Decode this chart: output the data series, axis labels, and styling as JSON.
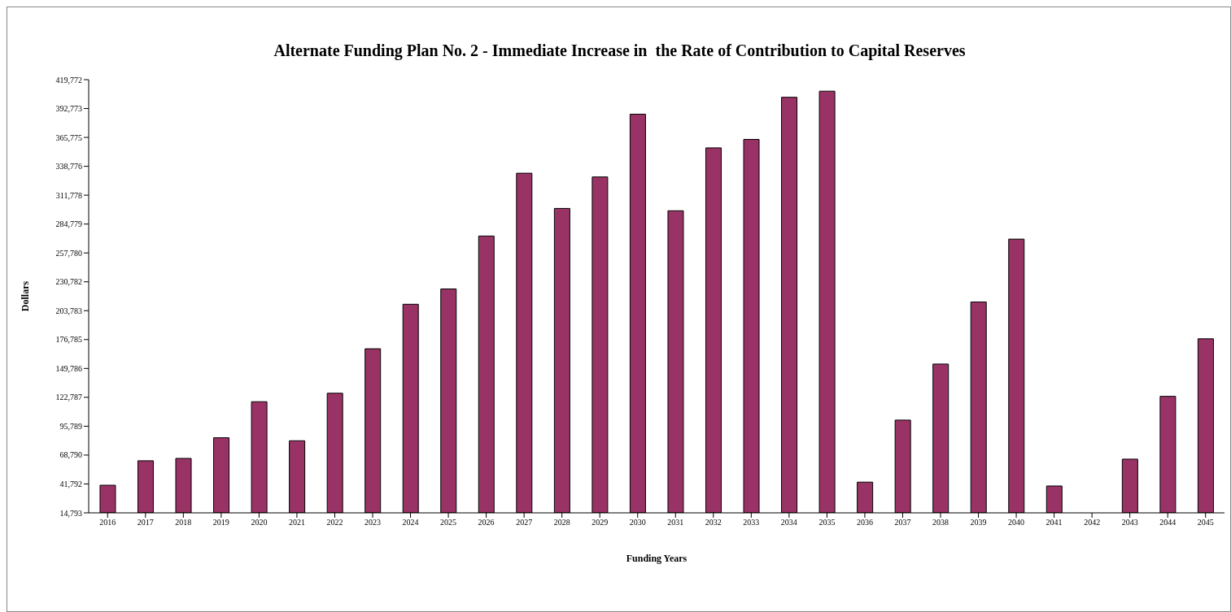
{
  "chart_data": {
    "type": "bar",
    "title": "Alternate Funding Plan No. 2 - Immediate Increase in  the Rate of Contribution to Capital Reserves",
    "xlabel": "Funding Years",
    "ylabel": "Dollars",
    "categories": [
      "2016",
      "2017",
      "2018",
      "2019",
      "2020",
      "2021",
      "2022",
      "2023",
      "2024",
      "2025",
      "2026",
      "2027",
      "2028",
      "2029",
      "2030",
      "2031",
      "2032",
      "2033",
      "2034",
      "2035",
      "2036",
      "2037",
      "2038",
      "2039",
      "2040",
      "2041",
      "2042",
      "2043",
      "2044",
      "2045"
    ],
    "values": [
      40600,
      63500,
      65700,
      85000,
      118700,
      82200,
      126600,
      168200,
      209800,
      224100,
      273600,
      332300,
      299400,
      328800,
      387500,
      297200,
      356000,
      363900,
      403300,
      409000,
      43500,
      101500,
      153900,
      211900,
      270700,
      39900,
      null,
      65000,
      123700,
      177500
    ],
    "color": "#993366",
    "ylim": [
      14793,
      419772
    ],
    "yticks": [
      {
        "value": 14793,
        "label": "14,793"
      },
      {
        "value": 41792,
        "label": "41,792"
      },
      {
        "value": 68790,
        "label": "68,790"
      },
      {
        "value": 95789,
        "label": "95,789"
      },
      {
        "value": 122787,
        "label": "122,787"
      },
      {
        "value": 149786,
        "label": "149,786"
      },
      {
        "value": 176785,
        "label": "176,785"
      },
      {
        "value": 203783,
        "label": "203,783"
      },
      {
        "value": 230782,
        "label": "230,782"
      },
      {
        "value": 257780,
        "label": "257,780"
      },
      {
        "value": 284779,
        "label": "284,779"
      },
      {
        "value": 311778,
        "label": "311,778"
      },
      {
        "value": 338776,
        "label": "338,776"
      },
      {
        "value": 365775,
        "label": "365,775"
      },
      {
        "value": 392773,
        "label": "392,773"
      },
      {
        "value": 419772,
        "label": "419,772"
      }
    ],
    "grid": false,
    "legend": false
  }
}
